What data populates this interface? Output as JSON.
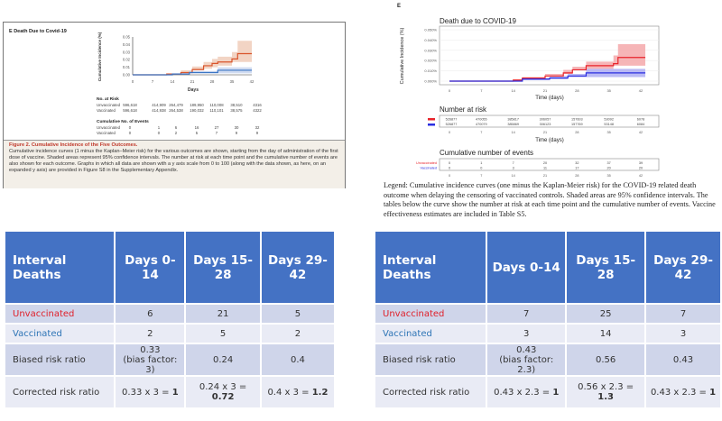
{
  "chart_data": [
    {
      "type": "line",
      "panel": "E",
      "title": "Death Due to Covid-19",
      "xlabel": "Days",
      "ylabel": "Cumulative Incidence (%)",
      "xlim": [
        0,
        42
      ],
      "ylim": [
        0,
        0.05
      ],
      "xticks": [
        "0",
        "7",
        "14",
        "21",
        "28",
        "35",
        "42"
      ],
      "yticks": [
        "0.00",
        "0.01",
        "0.02",
        "0.03",
        "0.04",
        "0.05"
      ],
      "series": [
        {
          "name": "Unvaccinated",
          "color": "#d9542b",
          "ci_color": "#efc9b5",
          "x": [
            0,
            12,
            17,
            21,
            25,
            28,
            30,
            35,
            37,
            42
          ],
          "y": [
            0,
            0.001,
            0.003,
            0.007,
            0.012,
            0.015,
            0.017,
            0.021,
            0.028,
            0.028
          ],
          "upper": [
            0,
            0.002,
            0.006,
            0.011,
            0.017,
            0.021,
            0.024,
            0.03,
            0.045,
            0.045
          ],
          "lower": [
            0,
            0,
            0.001,
            0.003,
            0.006,
            0.008,
            0.01,
            0.012,
            0.017,
            0.017
          ]
        },
        {
          "name": "Vaccinated",
          "color": "#3a74c4",
          "ci_color": "#c5d3ee",
          "x": [
            0,
            14,
            20,
            30,
            42
          ],
          "y": [
            0,
            0.001,
            0.003,
            0.006,
            0.006
          ],
          "upper": [
            0,
            0.002,
            0.005,
            0.01,
            0.01
          ],
          "lower": [
            0,
            0,
            0.001,
            0.002,
            0.002
          ]
        }
      ],
      "risk_header": "No. at Risk",
      "events_header": "Cumulative No. of Events",
      "risk_rows": [
        {
          "label": "Unvaccinated",
          "values": [
            "596,618",
            "414,909",
            "264,479",
            "189,950",
            "110,008",
            "38,510",
            "4316"
          ]
        },
        {
          "label": "Vaccinated",
          "values": [
            "596,618",
            "414,938",
            "264,538",
            "190,032",
            "110,101",
            "38,575",
            "4322"
          ]
        }
      ],
      "event_rows": [
        {
          "label": "Unvaccinated",
          "values": [
            "0",
            "1",
            "6",
            "16",
            "27",
            "30",
            "32"
          ]
        },
        {
          "label": "Vaccinated",
          "values": [
            "0",
            "0",
            "2",
            "5",
            "7",
            "9",
            "9"
          ]
        }
      ],
      "caption_title": "Figure 2. Cumulative Incidence of the Five Outcomes.",
      "caption_text": "Cumulative incidence curves (1 minus the Kaplan–Meier risk) for the various outcomes are shown, starting from the day of administration of the first dose of vaccine. Shaded areas represent 95% confidence intervals. The number at risk at each time point and the cumulative number of events are also shown for each outcome. Graphs in which all data are shown with a y axis scale from 0 to 100 (along with the data shown, as here, on an expanded y axis) are provided in Figure S8 in the Supplementary Appendix."
    },
    {
      "type": "line",
      "panel": "E",
      "title": "Death due to COVID-19",
      "xlabel": "Time (days)",
      "ylabel": "Cumulative Incidence (%)",
      "xlim": [
        0,
        42
      ],
      "ylim": [
        0,
        0.05
      ],
      "xticks": [
        "0",
        "7",
        "14",
        "21",
        "28",
        "35",
        "42"
      ],
      "yticks": [
        "0.000%",
        "0.010%",
        "0.020%",
        "0.030%",
        "0.040%",
        "0.050%"
      ],
      "series": [
        {
          "name": "Unvaccinated",
          "color": "#e8252c",
          "ci_color": "#f4a3a5",
          "x": [
            0,
            14,
            16,
            21,
            25,
            27,
            30,
            36,
            37,
            43
          ],
          "y": [
            0,
            0.001,
            0.003,
            0.005,
            0.008,
            0.011,
            0.015,
            0.017,
            0.023,
            0.023
          ],
          "upper": [
            0,
            0.002,
            0.004,
            0.007,
            0.011,
            0.014,
            0.019,
            0.025,
            0.036,
            0.036
          ],
          "lower": [
            0,
            0,
            0.001,
            0.003,
            0.005,
            0.007,
            0.011,
            0.012,
            0.015,
            0.015
          ]
        },
        {
          "name": "Vaccinated",
          "color": "#2b2ee0",
          "ci_color": "#a9a9f2",
          "x": [
            0,
            16,
            22,
            26,
            30,
            43
          ],
          "y": [
            0,
            0.002,
            0.003,
            0.005,
            0.008,
            0.008
          ],
          "upper": [
            0,
            0.003,
            0.005,
            0.007,
            0.012,
            0.012
          ],
          "lower": [
            0,
            0,
            0.001,
            0.002,
            0.004,
            0.004
          ]
        }
      ],
      "risk_header": "Number at risk",
      "events_header": "Cumulative number of events",
      "risk_rows": [
        {
          "label": "Unvaccinated",
          "values": [
            "526877",
            "470055",
            "385817",
            "306057",
            "157603",
            "53092",
            "6078"
          ]
        },
        {
          "label": "Vaccinated",
          "values": [
            "526877",
            "470079",
            "385869",
            "306123",
            "157769",
            "53148",
            "6084"
          ]
        }
      ],
      "event_rows": [
        {
          "label": "Unvaccinated",
          "values": [
            "0",
            "1",
            "7",
            "20",
            "32",
            "37",
            "39"
          ]
        },
        {
          "label": "Vaccinated",
          "values": [
            "0",
            "0",
            "3",
            "11",
            "17",
            "20",
            "20"
          ]
        }
      ],
      "legend_text": "Legend: Cumulative incidence curves (one minus the Kaplan-Meier risk) for the COVID-19 related death outcome when delaying the censoring of vaccinated controls. Shaded areas are 95% confidence intervals. The tables below the curve show the number at risk at each time point and the cumulative number of events. Vaccine effectiveness estimates are included in Table S5."
    }
  ],
  "tables": [
    {
      "header": [
        "Interval Deaths",
        "Days 0-14",
        "Days 15-28",
        "Days 29-42"
      ],
      "unvaccinated": [
        "Unvaccinated",
        "6",
        "21",
        "5"
      ],
      "vaccinated": [
        "Vaccinated",
        "2",
        "5",
        "2"
      ],
      "biased": {
        "label": "Biased risk ratio",
        "values": [
          "0.33",
          "0.24",
          "0.4"
        ],
        "note": "(bias factor: 3)"
      },
      "corrected": {
        "label": "Corrected risk ratio",
        "expr": [
          "0.33 x 3 = ",
          "0.24 x 3 = ",
          "0.4 x 3 = "
        ],
        "result": [
          "1",
          "0.72",
          "1.2"
        ]
      }
    },
    {
      "header": [
        "Interval Deaths",
        "Days 0-14",
        "Days 15-28",
        "Days 29-42"
      ],
      "unvaccinated": [
        "Unvaccinated",
        "7",
        "25",
        "7"
      ],
      "vaccinated": [
        "Vaccinated",
        "3",
        "14",
        "3"
      ],
      "biased": {
        "label": "Biased risk ratio",
        "values": [
          "0.43",
          "0.56",
          "0.43"
        ],
        "note": "(bias factor: 2.3)"
      },
      "corrected": {
        "label": "Corrected risk ratio",
        "expr": [
          "0.43 x 2.3 = ",
          "0.56 x 2.3 = ",
          "0.43 x 2.3 = "
        ],
        "result": [
          "1",
          "1.3",
          "1"
        ]
      }
    }
  ]
}
